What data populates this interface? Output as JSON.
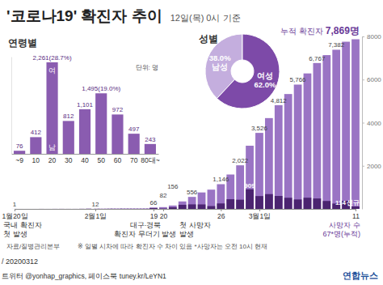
{
  "chart_data": [
    {
      "type": "bar",
      "title": "'코로나19' 확진자 추이",
      "subtitle": "12일(목) 0시 기준",
      "categories": [
        "1월20일",
        null,
        null,
        null,
        null,
        null,
        null,
        null,
        null,
        null,
        null,
        null,
        "2월1일",
        null,
        null,
        null,
        null,
        null,
        null,
        null,
        null,
        null,
        null,
        null,
        null,
        null,
        null,
        null,
        null,
        null,
        "19",
        "20",
        null,
        null,
        null,
        null,
        null,
        "26",
        null,
        null,
        null,
        "3월1일",
        null,
        null,
        null,
        null,
        null,
        null,
        null,
        null,
        null,
        "11"
      ],
      "series": [
        {
          "name": "누적 확진자",
          "color": "#9a74c4",
          "values": [
            1,
            1,
            1,
            1,
            2,
            2,
            3,
            4,
            4,
            4,
            6,
            11,
            12,
            15,
            15,
            16,
            19,
            23,
            24,
            24,
            27,
            27,
            28,
            28,
            28,
            28,
            28,
            29,
            30,
            31,
            66,
            82,
            156,
            346,
            556,
            763,
            893,
            1146,
            1595,
            2022,
            2931,
            3526,
            4212,
            4812,
            5328,
            5766,
            6284,
            6767,
            7134,
            7382,
            7755,
            7869
          ],
          "value_labels": [
            "1",
            null,
            null,
            null,
            null,
            null,
            null,
            null,
            null,
            null,
            null,
            null,
            "12",
            null,
            null,
            null,
            null,
            null,
            null,
            null,
            null,
            null,
            null,
            null,
            null,
            null,
            null,
            null,
            null,
            null,
            "66",
            "82",
            "156",
            null,
            "556",
            null,
            null,
            "1,146",
            null,
            "2,022",
            null,
            "3,526",
            null,
            "4,812",
            null,
            "5,766",
            null,
            "6,767",
            null,
            "7,382",
            null,
            "7,869명"
          ]
        },
        {
          "name": "신규",
          "color": "#4b2470",
          "values": [
            1,
            0,
            0,
            0,
            1,
            0,
            1,
            1,
            0,
            0,
            2,
            5,
            1,
            3,
            0,
            1,
            3,
            4,
            1,
            0,
            3,
            0,
            1,
            0,
            0,
            0,
            0,
            1,
            1,
            1,
            35,
            16,
            74,
            190,
            210,
            207,
            130,
            253,
            449,
            427,
            909,
            595,
            686,
            600,
            516,
            438,
            518,
            483,
            367,
            248,
            373,
            114
          ],
          "value_labels": [
            null,
            null,
            null,
            null,
            null,
            null,
            null,
            null,
            null,
            null,
            null,
            null,
            null,
            null,
            null,
            null,
            null,
            null,
            null,
            null,
            null,
            null,
            null,
            null,
            null,
            null,
            null,
            null,
            null,
            null,
            null,
            null,
            null,
            null,
            null,
            null,
            null,
            null,
            null,
            null,
            "909",
            null,
            null,
            null,
            null,
            null,
            null,
            null,
            null,
            null,
            null,
            "114"
          ]
        }
      ],
      "ylim": [
        0,
        8000
      ],
      "yticks": [
        2000,
        4000,
        6000,
        8000
      ],
      "grid": false,
      "data_labels": true,
      "annotations": [
        [
          "국내 확진자",
          "첫 발생"
        ],
        [
          "대구·경북",
          "확진자 무더기 발생"
        ],
        [
          "첫 사망자",
          "발생"
        ],
        [
          "사망자 수",
          "67*명(누적)"
        ]
      ]
    },
    {
      "type": "bar",
      "title": "연령별",
      "subtitle": "단위: 명",
      "categories": [
        "~9",
        "10",
        "20",
        "30",
        "40",
        "50",
        "60",
        "70",
        "80대~"
      ],
      "values": [
        76,
        412,
        2261,
        812,
        1101,
        1495,
        972,
        497,
        243
      ],
      "value_labels": [
        "76",
        "412",
        "2,261(28.7%)",
        "812",
        "1,101",
        "1,495(19.0%)",
        "972",
        "497",
        "243"
      ],
      "color": "#8a5cb0",
      "ylim": [
        0,
        2400
      ],
      "tick_labels": "x",
      "data_labels": true,
      "annotations": [
        "여",
        "남"
      ]
    },
    {
      "type": "pie",
      "title": "성별",
      "categories": [
        "남성",
        "여성"
      ],
      "values": [
        38.0,
        62.0
      ],
      "value_labels": [
        "38.0%",
        "62.0%"
      ],
      "colors": [
        "#c4aede",
        "#7d4aa8"
      ],
      "data_labels": true
    }
  ],
  "footer": {
    "source": "자료/질병관리본부",
    "note": "※ 일별 시차에 따라 확진자 수 차이 있음 *사망자는 오전 10시 현재",
    "date": "/ 20200312",
    "credit": "트위터 @yonhap_graphics, 페이스북 tuney.kr/LeYN1",
    "logo": "연합뉴스"
  }
}
